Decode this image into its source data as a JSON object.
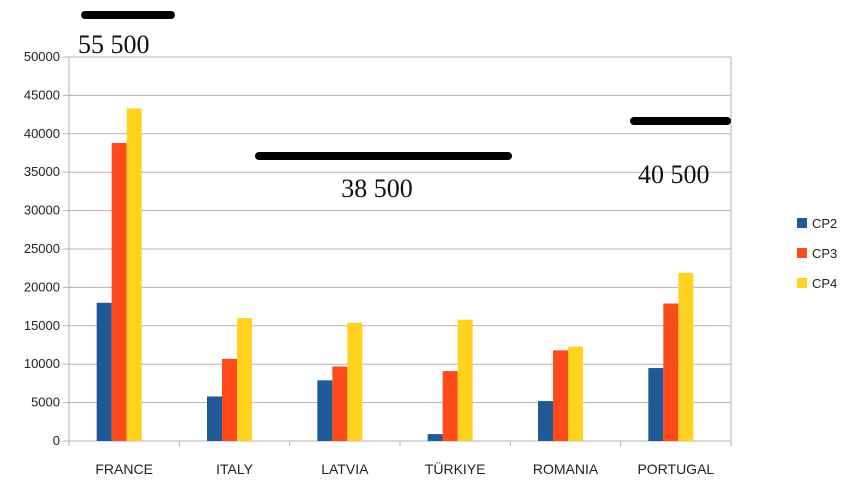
{
  "chart_data": {
    "type": "bar",
    "categories": [
      "FRANCE",
      "ITALY",
      "LATVIA",
      "TÜRKIYE",
      "ROMANIA",
      "PORTUGAL"
    ],
    "series": [
      {
        "name": "CP2",
        "color": "#1f5a96",
        "values": [
          18000,
          5800,
          7900,
          900,
          5200,
          9500
        ]
      },
      {
        "name": "CP3",
        "color": "#ff4a1a",
        "values": [
          38800,
          10700,
          9700,
          9100,
          11800,
          17900
        ]
      },
      {
        "name": "CP4",
        "color": "#ffd320",
        "values": [
          43300,
          16000,
          15400,
          15800,
          12300,
          21900
        ]
      }
    ],
    "ylim": [
      0,
      50000
    ],
    "yticks": [
      0,
      5000,
      10000,
      15000,
      20000,
      25000,
      30000,
      35000,
      40000,
      45000,
      50000
    ],
    "grid": true,
    "legend_position": "right",
    "annotations": [
      {
        "text": "55 500",
        "level": 55500,
        "x_start": "FRANCE",
        "x_end": "FRANCE"
      },
      {
        "text": "38 500",
        "level": 38500,
        "x_start": "LATVIA",
        "x_end": "TÜRKIYE"
      },
      {
        "text": "40 500",
        "level": 40500,
        "x_start": "PORTUGAL",
        "x_end": "PORTUGAL"
      }
    ]
  }
}
